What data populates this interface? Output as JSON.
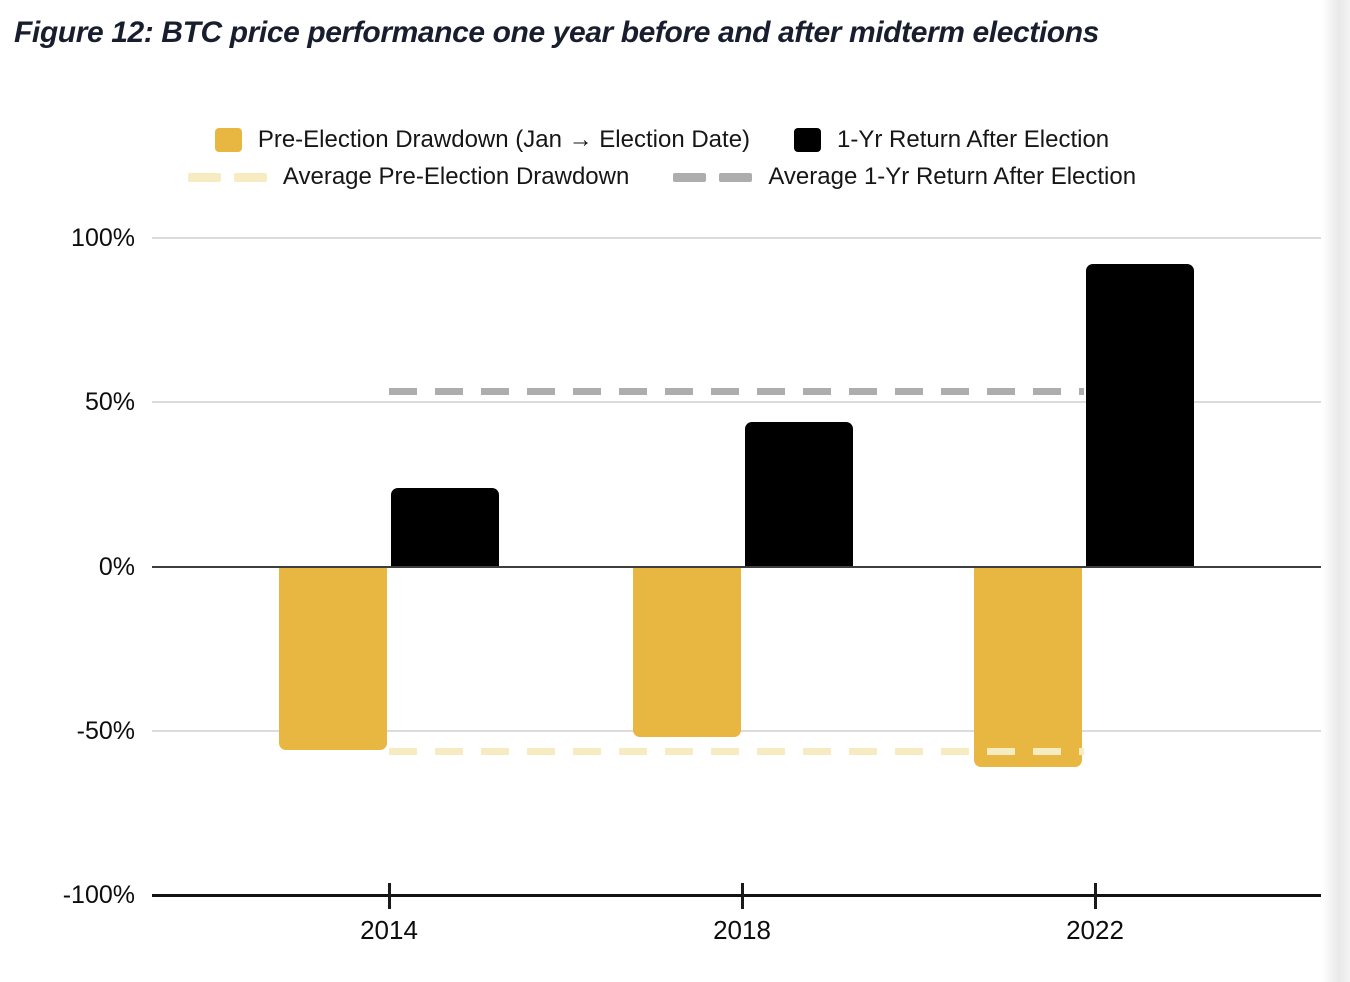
{
  "figure_title": "Figure 12: BTC price performance one year before and after midterm elections",
  "legend": {
    "items": [
      {
        "label": "Pre-Election Drawdown (Jan → Election Date)",
        "swatch": "square",
        "color": "#E8B742"
      },
      {
        "label": "1-Yr Return After Election",
        "swatch": "square",
        "color": "#000000"
      },
      {
        "label": "Average Pre-Election Drawdown",
        "swatch": "dashes",
        "color": "#F7EBC1"
      },
      {
        "label": "Average 1-Yr Return After Election",
        "swatch": "dashes",
        "color": "#ADADAD"
      }
    ]
  },
  "chart_data": {
    "type": "bar",
    "categories": [
      "2014",
      "2018",
      "2022"
    ],
    "series": [
      {
        "name": "Pre-Election Drawdown (Jan → Election Date)",
        "color": "#E8B742",
        "values": [
          -56,
          -52,
          -61
        ]
      },
      {
        "name": "1-Yr Return After Election",
        "color": "#000000",
        "values": [
          24,
          44,
          92
        ]
      }
    ],
    "average_lines": [
      {
        "name": "Average Pre-Election Drawdown",
        "value": -56.3,
        "color": "#F7EBC1",
        "style": "dashed"
      },
      {
        "name": "Average 1-Yr Return After Election",
        "value": 53.3,
        "color": "#ADADAD",
        "style": "dashed"
      }
    ],
    "ylim": [
      -100,
      100
    ],
    "yticks": [
      100,
      50,
      0,
      -50,
      -100
    ],
    "ytick_labels": [
      "100%",
      "50%",
      "0%",
      "-50%",
      "-100%"
    ],
    "grid": true,
    "grid_color": "#DCDCDC",
    "zero_line_color": "#3E3E3E",
    "axis_line_color": "#121212",
    "legend_position": "top",
    "title_color": "#181E2E"
  }
}
